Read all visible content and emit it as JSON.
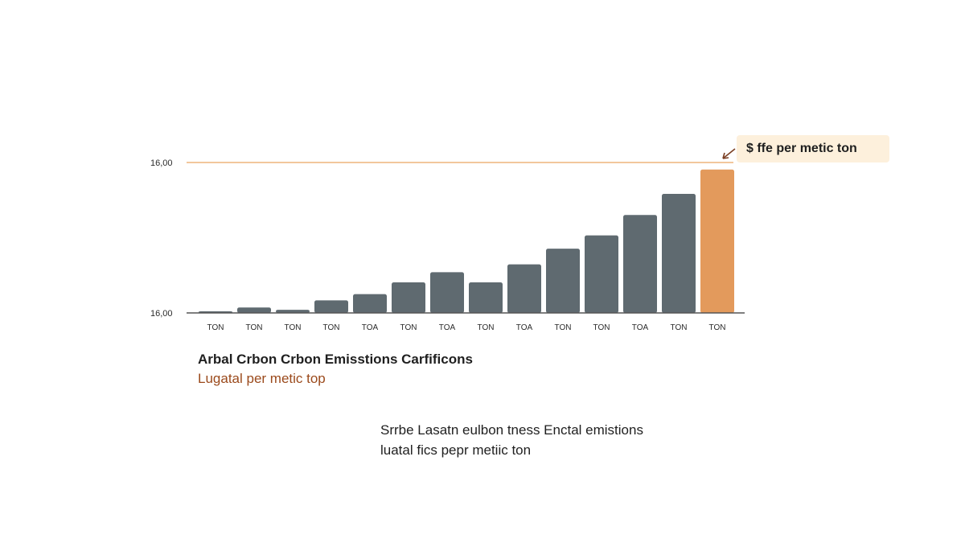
{
  "chart_data": {
    "type": "bar",
    "categories": [
      "TON",
      "TON",
      "TON",
      "TON",
      "TOA",
      "TON",
      "TOA",
      "TON",
      "TOA",
      "TON",
      "TON",
      "TOA",
      "TON",
      "TON"
    ],
    "values": [
      0.05,
      0.35,
      0.2,
      0.8,
      1.2,
      1.95,
      2.6,
      1.95,
      3.1,
      4.1,
      4.95,
      6.25,
      7.6,
      9.15
    ],
    "ylim": [
      0,
      9.6
    ],
    "yticks": [
      "16,00",
      "16,00"
    ],
    "grid": false,
    "colors": {
      "bar": "#5f6a70",
      "highlight": "#e39a5c",
      "reference_line": "#f2c79c",
      "axis": "#555555"
    },
    "highlight_index": 13,
    "reference_value": 9.6,
    "callout": "$ ffe per metic ton",
    "title": "Arbal Crbon Crbon Emisstions Carfificons",
    "subtitle": "Lugatal per metic top"
  },
  "note": {
    "line1": "Srrbe Lasatn eulbon tness Enctal emistions",
    "line2": "luatal fics pepr metiic ton"
  }
}
